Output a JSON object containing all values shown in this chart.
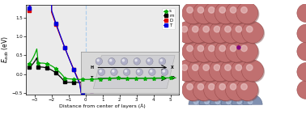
{
  "xlabel": "Distance from center of layers (Å)",
  "ylabel": "$E_{ads}$ (eV)",
  "bg_color": "#ebebeb",
  "legend_labels": [
    "s",
    "m",
    "D",
    "T"
  ],
  "legend_colors": [
    "#00aa00",
    "#000000",
    "#dd0000",
    "#0000dd"
  ],
  "xlim": [
    -3.5,
    5.5
  ],
  "ylim": [
    -0.55,
    1.85
  ],
  "vline_x": 0.0,
  "vline_color": "#aaccee",
  "sphere_color": "#c07070",
  "sphere_edge": "#904040",
  "sphere_highlight": "#e8c0c0",
  "sphere_shadow": "#804848",
  "half_sphere_color": "#8090b0",
  "half_sphere_edge": "#506080",
  "atom_inset_color": "#b0b0c8",
  "atom_inset_edge": "#808090"
}
